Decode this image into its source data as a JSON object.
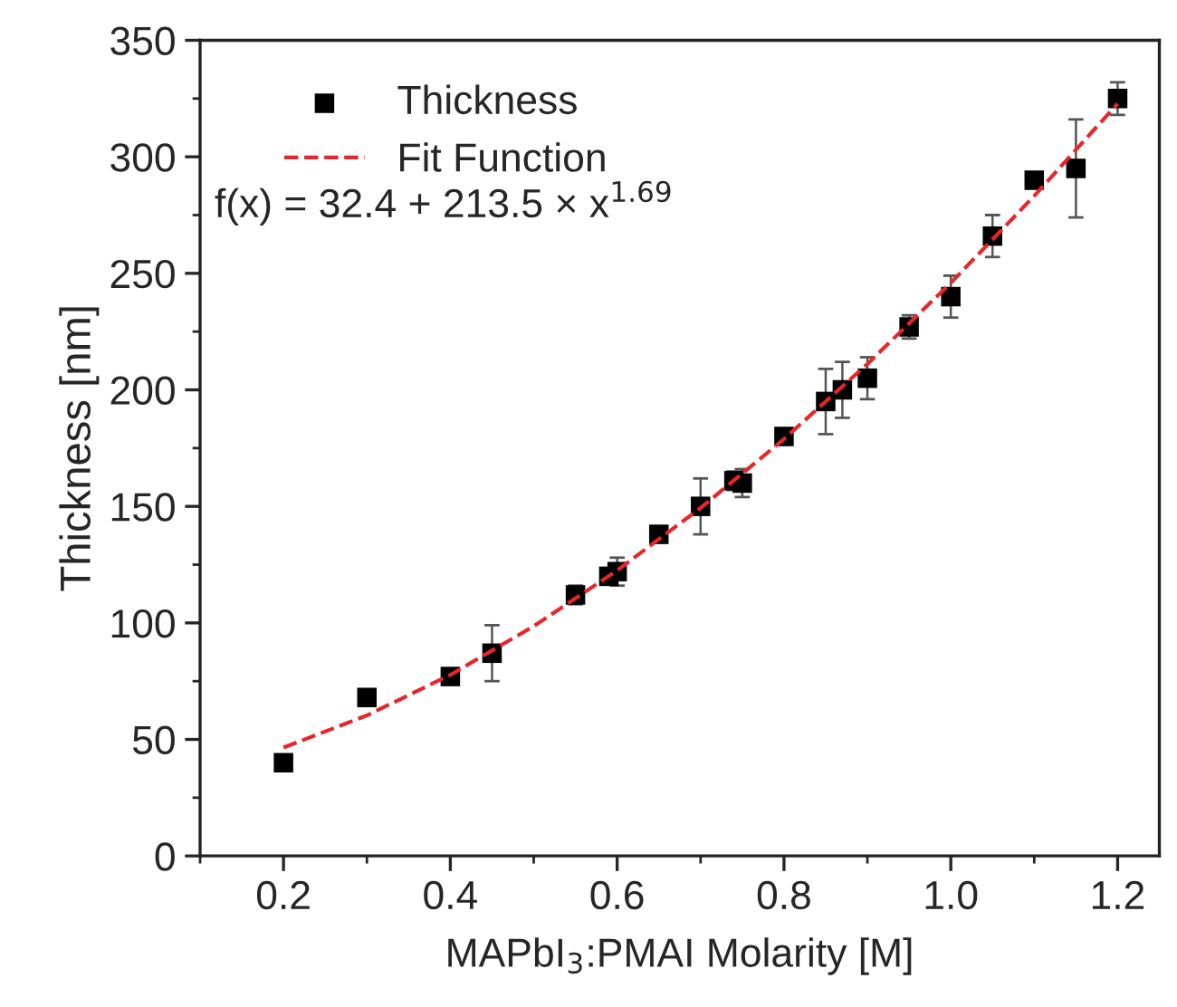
{
  "chart_data": {
    "type": "scatter",
    "xlabel": "MAPbI$_{3}$:PMAI Molarity [M]",
    "ylabel": "Thickness [nm]",
    "xlim": [
      0.1,
      1.25
    ],
    "xticks": [
      {
        "value": 0.2,
        "label": "0.2"
      },
      {
        "value": 0.4,
        "label": "0.4"
      },
      {
        "value": 0.6,
        "label": "0.6"
      },
      {
        "value": 0.8,
        "label": "0.8"
      },
      {
        "value": 1.0,
        "label": "1.0"
      },
      {
        "value": 1.2,
        "label": "1.2"
      }
    ],
    "ylim": [
      0,
      350
    ],
    "yticks": [
      0,
      50,
      100,
      150,
      200,
      250,
      300,
      350
    ],
    "grid": false,
    "legend": "top left",
    "annotations": [
      "f(x) = 32.4 + 213.5 × x$^{1.69}$"
    ],
    "series": [
      {
        "name": "Thickness",
        "color": "#000000",
        "marker": "square",
        "x": [
          0.2,
          0.3,
          0.4,
          0.45,
          0.55,
          0.59,
          0.6,
          0.65,
          0.7,
          0.74,
          0.75,
          0.8,
          0.85,
          0.87,
          0.9,
          0.95,
          1.0,
          1.05,
          1.1,
          1.15,
          1.2
        ],
        "values": [
          40,
          68,
          77,
          87,
          112,
          120,
          122,
          138,
          150,
          161,
          160,
          180,
          195,
          200,
          205,
          227,
          240,
          266,
          290,
          295,
          325
        ],
        "errors": [
          null,
          null,
          null,
          12,
          4,
          null,
          6,
          null,
          12,
          4,
          6,
          null,
          14,
          12,
          9,
          5,
          9,
          9,
          null,
          21,
          7
        ]
      },
      {
        "name": "Fit Function",
        "type": "line",
        "color": "#e8262a",
        "line_style": "dashed",
        "marker": "none",
        "x": [
          0.2,
          0.3,
          0.4,
          0.5,
          0.6,
          0.7,
          0.8,
          0.9,
          1.0,
          1.1,
          1.2
        ],
        "values": [
          46.5,
          60.3,
          77.7,
          98.6,
          122.5,
          149.3,
          178.9,
          211.1,
          245.9,
          283.2,
          322.8
        ]
      }
    ]
  }
}
